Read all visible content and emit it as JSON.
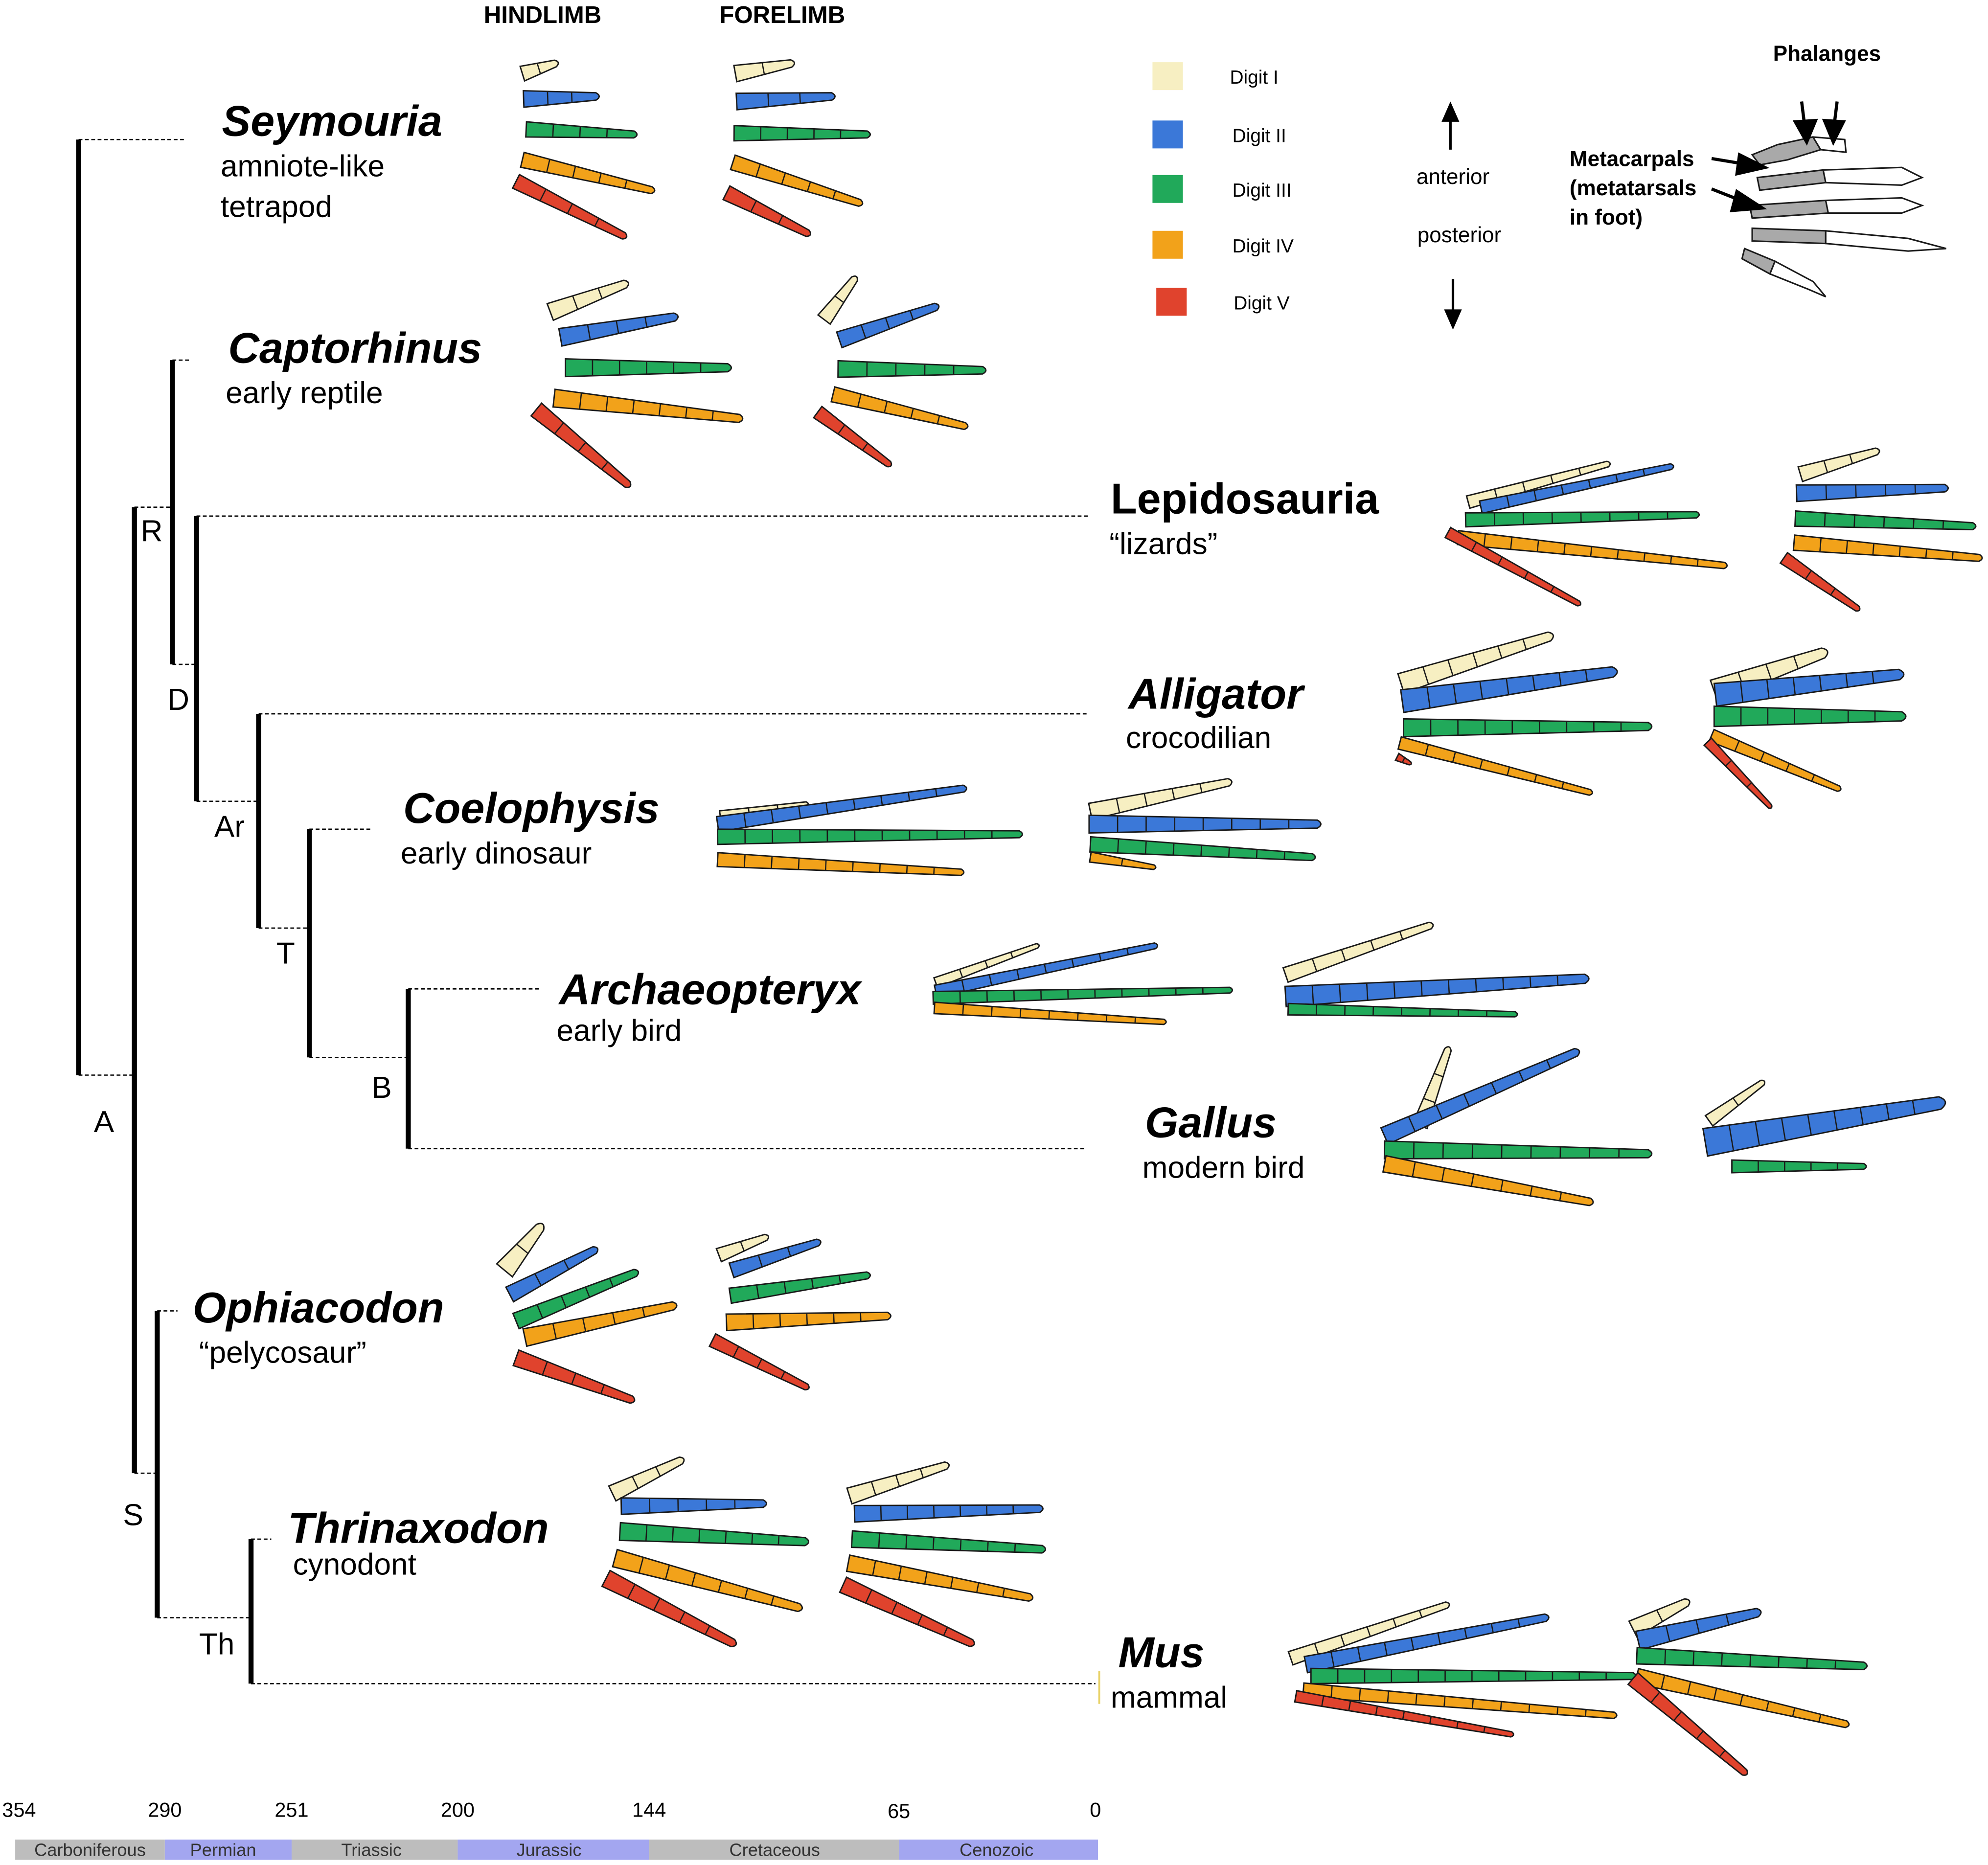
{
  "columns": {
    "hindlimb": "HINDLIMB",
    "forelimb": "FORELIMB"
  },
  "legend": {
    "items": [
      {
        "label": "Digit I",
        "color": "#f7efc2"
      },
      {
        "label": "Digit II",
        "color": "#3b78d8"
      },
      {
        "label": "Digit III",
        "color": "#21a95a"
      },
      {
        "label": "Digit IV",
        "color": "#f2a21a"
      },
      {
        "label": "Digit V",
        "color": "#e0432d"
      }
    ],
    "anterior": "anterior",
    "posterior": "posterior"
  },
  "anatomy": {
    "phalanges": "Phalanges",
    "metacarpals": [
      "Metacarpals",
      "(metatarsals",
      "in foot)"
    ]
  },
  "taxa": [
    {
      "name": "Seymouria",
      "desc": [
        "amniote-like",
        "tetrapod"
      ]
    },
    {
      "name": "Captorhinus",
      "desc": [
        "early reptile"
      ]
    },
    {
      "name": "Lepidosauria",
      "desc": [
        "“lizards”"
      ]
    },
    {
      "name": "Alligator",
      "desc": [
        "crocodilian"
      ]
    },
    {
      "name": "Coelophysis",
      "desc": [
        "early dinosaur"
      ]
    },
    {
      "name": "Archaeopteryx",
      "desc": [
        "early bird"
      ]
    },
    {
      "name": "Gallus",
      "desc": [
        "modern bird"
      ]
    },
    {
      "name": "Ophiacodon",
      "desc": [
        "“pelycosaur”"
      ]
    },
    {
      "name": "Thrinaxodon",
      "desc": [
        "cynodont"
      ]
    },
    {
      "name": "Mus",
      "desc": [
        "mammal"
      ]
    }
  ],
  "nodes": [
    "A",
    "R",
    "D",
    "Ar",
    "T",
    "B",
    "S",
    "Th"
  ],
  "timescale": {
    "ticks": [
      "354",
      "290",
      "251",
      "200",
      "144",
      "65",
      "0"
    ],
    "periods": [
      "Carboniferous",
      "Permian",
      "Triassic",
      "Jurassic",
      "Cretaceous",
      "Cenozoic"
    ],
    "period_colors": [
      "#bdbdbd",
      "#a3a6f0",
      "#bdbdbd",
      "#a3a6f0",
      "#bdbdbd",
      "#a3a6f0"
    ]
  },
  "colors": {
    "bone_outline": "#1a1a1a",
    "tree_line": "#000000"
  }
}
